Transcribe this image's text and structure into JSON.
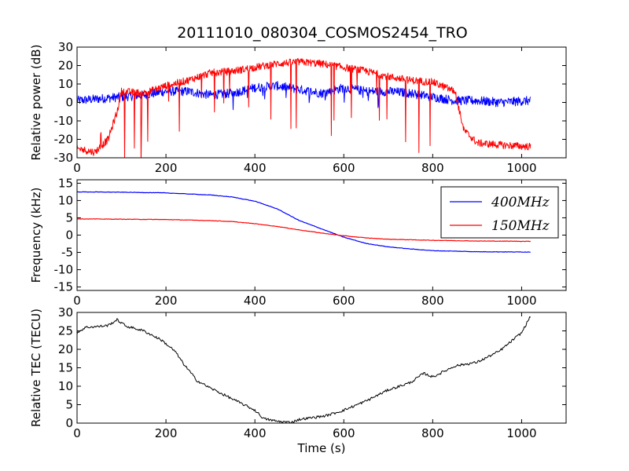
{
  "title": "20111010_080304_COSMOS2454_TRO",
  "chart_data": [
    {
      "type": "line",
      "ylabel": "Relative power (dB)",
      "xlabel": "",
      "xlim": [
        0,
        1100
      ],
      "ylim": [
        -30,
        30
      ],
      "xticks": [
        0,
        200,
        400,
        600,
        800,
        1000
      ],
      "yticks": [
        -30,
        -20,
        -10,
        0,
        10,
        20,
        30
      ],
      "grid": false,
      "series": [
        {
          "color": "#0000ff",
          "x": [
            0,
            50,
            100,
            150,
            200,
            250,
            300,
            350,
            400,
            450,
            500,
            550,
            600,
            650,
            700,
            750,
            800,
            850,
            900,
            950,
            1020
          ],
          "y": [
            1,
            2,
            3,
            4,
            6,
            6,
            4,
            5,
            8,
            9,
            7,
            5,
            8,
            6,
            6,
            5,
            3,
            1,
            1,
            0,
            1
          ]
        },
        {
          "color": "#ff0000",
          "x": [
            0,
            40,
            70,
            90,
            100,
            150,
            200,
            250,
            300,
            350,
            400,
            450,
            500,
            550,
            600,
            650,
            700,
            750,
            800,
            850,
            870,
            900,
            950,
            1020
          ],
          "y": [
            -25,
            -27,
            -20,
            -5,
            6,
            5,
            9,
            12,
            16,
            17,
            19,
            21,
            22,
            21,
            19,
            17,
            14,
            12,
            11,
            6,
            -15,
            -22,
            -23,
            -24
          ]
        }
      ]
    },
    {
      "type": "line",
      "ylabel": "Frequency (kHz)",
      "xlabel": "",
      "xlim": [
        0,
        1100
      ],
      "ylim": [
        -16,
        16
      ],
      "xticks": [
        0,
        200,
        400,
        600,
        800,
        1000
      ],
      "yticks": [
        -15,
        -10,
        -5,
        0,
        5,
        10,
        15
      ],
      "grid": false,
      "legend": "top-right",
      "series": [
        {
          "name": "400MHz",
          "color": "#0000ff",
          "x": [
            0,
            100,
            200,
            300,
            350,
            400,
            450,
            500,
            550,
            600,
            650,
            700,
            750,
            800,
            900,
            1020
          ],
          "y": [
            12.5,
            12.4,
            12.2,
            11.6,
            11.0,
            9.8,
            7.6,
            4.2,
            1.8,
            -0.6,
            -2.4,
            -3.4,
            -4.0,
            -4.5,
            -4.8,
            -4.9
          ]
        },
        {
          "name": "150MHz",
          "color": "#ff0000",
          "x": [
            0,
            100,
            200,
            300,
            350,
            400,
            450,
            500,
            550,
            600,
            650,
            700,
            800,
            900,
            1020
          ],
          "y": [
            4.7,
            4.6,
            4.5,
            4.2,
            3.9,
            3.3,
            2.5,
            1.5,
            0.6,
            -0.2,
            -0.8,
            -1.2,
            -1.5,
            -1.7,
            -1.8
          ]
        }
      ]
    },
    {
      "type": "line",
      "ylabel": "Relative TEC (TECU)",
      "xlabel": "Time (s)",
      "xlim": [
        0,
        1100
      ],
      "ylim": [
        0,
        30
      ],
      "xticks": [
        0,
        200,
        400,
        600,
        800,
        1000
      ],
      "yticks": [
        0,
        5,
        10,
        15,
        20,
        25,
        30
      ],
      "grid": false,
      "series": [
        {
          "color": "#000000",
          "x": [
            0,
            20,
            50,
            70,
            90,
            110,
            150,
            190,
            220,
            240,
            270,
            300,
            350,
            400,
            420,
            450,
            480,
            500,
            530,
            560,
            600,
            650,
            700,
            750,
            780,
            800,
            850,
            900,
            950,
            1000,
            1020
          ],
          "y": [
            24.5,
            26,
            26.2,
            26.5,
            28,
            26.3,
            25,
            22.5,
            19.5,
            16,
            11.5,
            9.5,
            6.5,
            3.5,
            1.2,
            0.5,
            0.2,
            1.0,
            1.5,
            2.0,
            3.5,
            6.0,
            9.0,
            11.0,
            13.5,
            12.5,
            15.5,
            16.5,
            19.5,
            24.5,
            29
          ]
        }
      ]
    }
  ]
}
